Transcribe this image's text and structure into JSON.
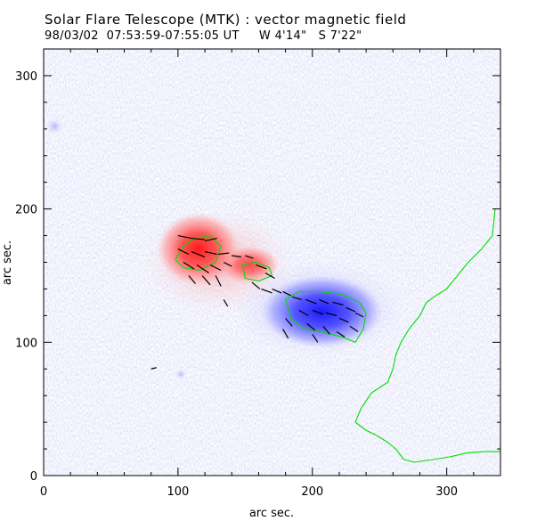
{
  "header": {
    "title": "Solar Flare Telescope (MTK) : vector magnetic field",
    "observation": "98/03/02  07:53:59-07:55:05 UT     W 4'14\"   S 7'22\""
  },
  "chart_data": {
    "type": "heatmap",
    "xlabel": "arc sec.",
    "ylabel": "arc sec.",
    "xlim": [
      0,
      340
    ],
    "ylim": [
      0,
      320
    ],
    "xticks": [
      "0",
      "100",
      "200",
      "300"
    ],
    "yticks": [
      "0",
      "100",
      "200",
      "300"
    ],
    "legend": "none",
    "grid": false,
    "colors": {
      "positive_polarity": "#ff3030",
      "negative_polarity": "#3030ff",
      "contour": "#00dd00",
      "vector": "#000000",
      "background_noise": "#b8bcf0"
    },
    "positive_region": {
      "center": [
        115,
        170
      ],
      "core_radius": [
        18,
        16
      ]
    },
    "negative_region": {
      "center": [
        205,
        125
      ],
      "core_radius": [
        30,
        18
      ]
    },
    "contours": [
      {
        "name": "positive-core",
        "points": [
          [
            98,
            162
          ],
          [
            104,
            172
          ],
          [
            112,
            178
          ],
          [
            124,
            180
          ],
          [
            132,
            172
          ],
          [
            128,
            160
          ],
          [
            116,
            154
          ],
          [
            104,
            156
          ],
          [
            98,
            162
          ]
        ]
      },
      {
        "name": "positive-secondary",
        "points": [
          [
            148,
            158
          ],
          [
            158,
            160
          ],
          [
            168,
            156
          ],
          [
            170,
            150
          ],
          [
            160,
            146
          ],
          [
            150,
            148
          ],
          [
            148,
            158
          ]
        ]
      },
      {
        "name": "negative-core",
        "points": [
          [
            180,
            132
          ],
          [
            190,
            138
          ],
          [
            205,
            138
          ],
          [
            222,
            136
          ],
          [
            235,
            130
          ],
          [
            240,
            122
          ],
          [
            238,
            110
          ],
          [
            232,
            100
          ],
          [
            222,
            104
          ],
          [
            206,
            108
          ],
          [
            194,
            110
          ],
          [
            184,
            118
          ],
          [
            180,
            132
          ]
        ]
      },
      {
        "name": "limb-boundary",
        "points": [
          [
            336,
            200
          ],
          [
            334,
            180
          ],
          [
            326,
            170
          ],
          [
            316,
            160
          ],
          [
            308,
            150
          ],
          [
            300,
            140
          ],
          [
            292,
            135
          ],
          [
            285,
            130
          ],
          [
            280,
            120
          ],
          [
            272,
            110
          ],
          [
            266,
            100
          ],
          [
            262,
            90
          ],
          [
            260,
            80
          ],
          [
            256,
            70
          ],
          [
            244,
            62
          ],
          [
            240,
            56
          ],
          [
            236,
            50
          ],
          [
            232,
            40
          ],
          [
            240,
            34
          ],
          [
            248,
            30
          ],
          [
            256,
            25
          ],
          [
            262,
            20
          ],
          [
            268,
            12
          ],
          [
            276,
            10
          ],
          [
            290,
            12
          ],
          [
            302,
            14
          ],
          [
            315,
            17
          ],
          [
            328,
            18
          ],
          [
            340,
            18
          ]
        ]
      }
    ],
    "vectors": [
      [
        100,
        180,
        10,
        -2
      ],
      [
        110,
        178,
        10,
        -1
      ],
      [
        120,
        176,
        9,
        2
      ],
      [
        100,
        170,
        8,
        -4
      ],
      [
        110,
        168,
        10,
        -4
      ],
      [
        120,
        168,
        9,
        -2
      ],
      [
        130,
        166,
        8,
        1
      ],
      [
        104,
        160,
        8,
        -5
      ],
      [
        114,
        158,
        9,
        -6
      ],
      [
        124,
        158,
        8,
        -4
      ],
      [
        134,
        160,
        6,
        -3
      ],
      [
        118,
        150,
        6,
        -7
      ],
      [
        128,
        150,
        4,
        -8
      ],
      [
        108,
        150,
        5,
        -6
      ],
      [
        140,
        165,
        7,
        -1
      ],
      [
        150,
        165,
        6,
        -2
      ],
      [
        158,
        158,
        8,
        -3
      ],
      [
        165,
        152,
        7,
        -4
      ],
      [
        155,
        145,
        6,
        -5
      ],
      [
        162,
        140,
        8,
        -3
      ],
      [
        170,
        140,
        7,
        -3
      ],
      [
        178,
        138,
        6,
        -3
      ],
      [
        185,
        134,
        7,
        -2
      ],
      [
        195,
        132,
        8,
        -3
      ],
      [
        205,
        132,
        7,
        -3
      ],
      [
        215,
        130,
        8,
        -2
      ],
      [
        225,
        126,
        7,
        -3
      ],
      [
        232,
        122,
        6,
        -3
      ],
      [
        190,
        124,
        7,
        -4
      ],
      [
        200,
        124,
        8,
        -3
      ],
      [
        210,
        122,
        8,
        -2
      ],
      [
        220,
        118,
        7,
        -3
      ],
      [
        228,
        112,
        6,
        -4
      ],
      [
        180,
        118,
        5,
        -6
      ],
      [
        196,
        114,
        6,
        -5
      ],
      [
        208,
        112,
        5,
        -6
      ],
      [
        218,
        108,
        6,
        -4
      ],
      [
        178,
        110,
        4,
        -7
      ],
      [
        200,
        106,
        4,
        -6
      ],
      [
        134,
        132,
        3,
        -5
      ],
      [
        80,
        80,
        4,
        1
      ]
    ]
  }
}
